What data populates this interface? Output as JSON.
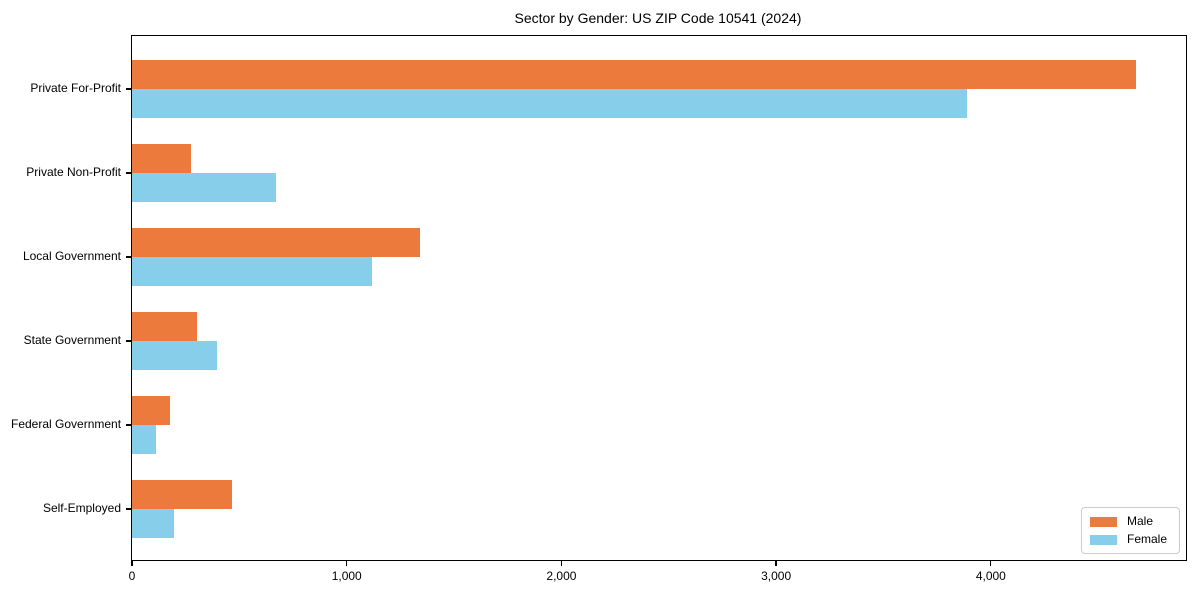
{
  "title": "Sector by Gender: US ZIP Code 10541 (2024)",
  "chart_data": {
    "type": "bar",
    "orientation": "horizontal",
    "title": "Sector by Gender: US ZIP Code 10541 (2024)",
    "categories": [
      "Private For-Profit",
      "Private Non-Profit",
      "Local Government",
      "State Government",
      "Federal Government",
      "Self-Employed"
    ],
    "series": [
      {
        "name": "Male",
        "color": "#ec7a3c",
        "values": [
          4675,
          275,
          1340,
          305,
          175,
          465
        ]
      },
      {
        "name": "Female",
        "color": "#87ceeb",
        "values": [
          3890,
          670,
          1120,
          395,
          110,
          195
        ]
      }
    ],
    "xlabel": "",
    "ylabel": "",
    "xlim": [
      0,
      4909
    ],
    "xticks": [
      0,
      1000,
      2000,
      3000,
      4000
    ],
    "xtick_labels": [
      "0",
      "1,000",
      "2,000",
      "3,000",
      "4,000"
    ],
    "grid": false,
    "legend": {
      "labels": [
        "Male",
        "Female"
      ],
      "position": "lower right"
    },
    "axis_color": "#000000",
    "plot_background": "#ffffff"
  }
}
